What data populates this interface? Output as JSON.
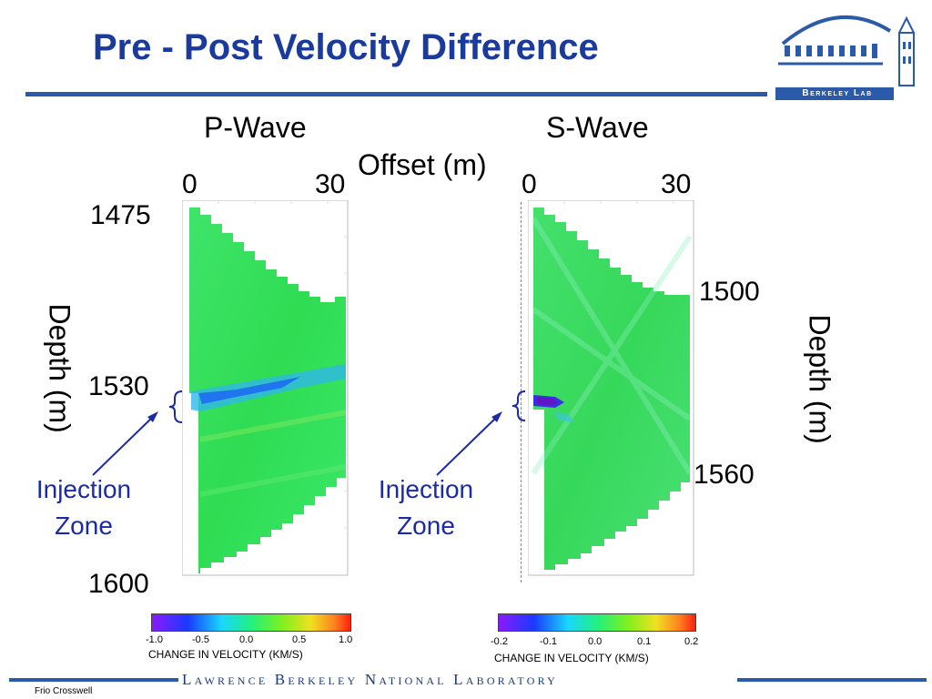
{
  "title": "Pre - Post Velocity Difference",
  "logo": {
    "text": "Berkeley Lab",
    "colors": {
      "primary": "#2a5aa8"
    }
  },
  "p_wave": {
    "label": "P-Wave",
    "offset_start": "0",
    "offset_end": "30",
    "depth_top": "1475",
    "depth_mid": "1530",
    "depth_bottom": "1600",
    "axis_label": "Depth (m)",
    "injection_label_1": "Injection",
    "injection_label_2": "Zone",
    "colorbar_ticks": [
      "-1.0",
      "-0.5",
      "0.0",
      "0.5",
      "1.0"
    ],
    "colorbar_title": "CHANGE IN VELOCITY (KM/S)"
  },
  "offset_label": "Offset (m)",
  "s_wave": {
    "label": "S-Wave",
    "offset_start": "0",
    "offset_end": "30",
    "depth_mid_top": "1500",
    "depth_mid_bottom": "1560",
    "axis_label": "Depth (m)",
    "injection_label_1": "Injection",
    "injection_label_2": "Zone",
    "colorbar_ticks": [
      "-0.2",
      "-0.1",
      "0.0",
      "0.1",
      "0.2"
    ],
    "colorbar_title": "CHANGE IN VELOCITY (KM/S)"
  },
  "footer": {
    "banner": "Lawrence Berkeley National Laboratory",
    "note": "Frio Crosswell"
  },
  "colors": {
    "title": "#1a3a9c",
    "field": "#33e05a",
    "anomaly": "#1f6cf2",
    "annotation": "#1a2aa8"
  }
}
